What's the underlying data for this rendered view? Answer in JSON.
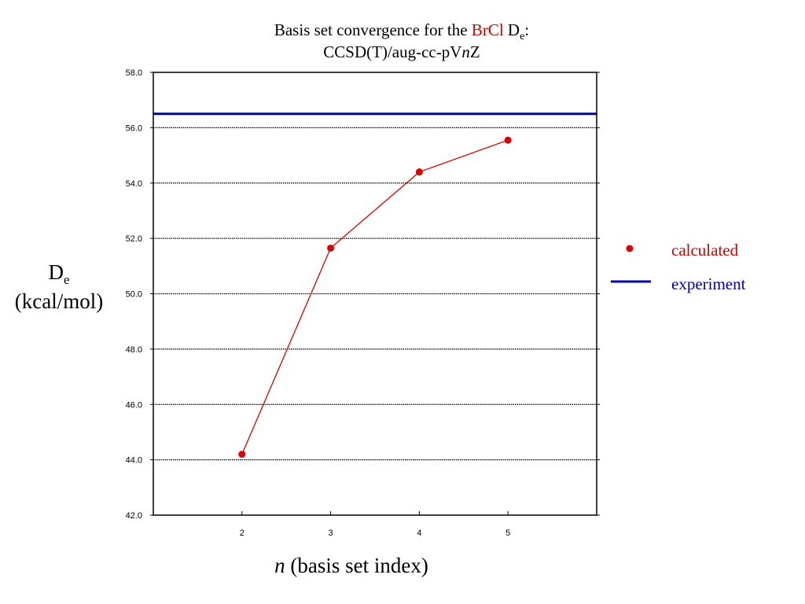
{
  "chart_data": {
    "type": "line",
    "title": {
      "line1_prefix": "Basis set convergence for the ",
      "molecule": "BrCl",
      "quantity_main": "D",
      "quantity_sub": "e",
      "quantity_suffix": ":",
      "line2_prefix": "CCSD(T)/aug-cc-pV",
      "line2_italic": "n",
      "line2_suffix": "Z"
    },
    "ylabel": {
      "main": "D",
      "sub": "e",
      "units": "(kcal/mol)"
    },
    "xlabel": {
      "italic": "n",
      "rest": " (basis set index)"
    },
    "ylim": [
      42.0,
      58.0
    ],
    "xlim": [
      1,
      6
    ],
    "yticks": [
      "42.0",
      "44.0",
      "46.0",
      "48.0",
      "50.0",
      "52.0",
      "54.0",
      "56.0",
      "58.0"
    ],
    "xticks": [
      "2",
      "3",
      "4",
      "5"
    ],
    "grid": true,
    "legend_position": "right",
    "series": [
      {
        "name": "calculated",
        "color": "#dd0000",
        "x": [
          2,
          3,
          4,
          5
        ],
        "y": [
          44.2,
          51.65,
          54.4,
          55.55
        ]
      }
    ],
    "reference_lines": [
      {
        "name": "experiment",
        "color": "#0000aa",
        "y": 56.5
      }
    ]
  }
}
